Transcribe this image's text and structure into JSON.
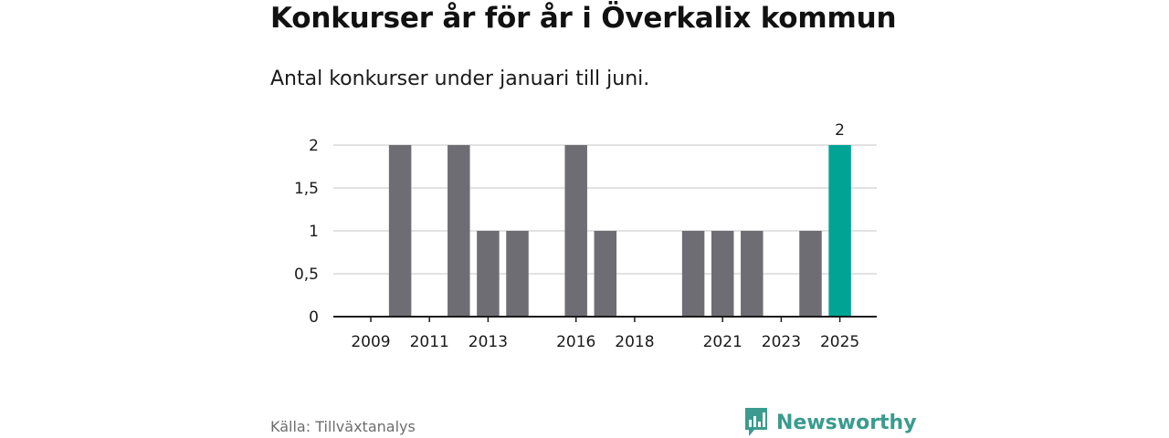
{
  "header": {
    "title": "Konkurser år för år i Överkalix kommun",
    "subtitle": "Antal konkurser under januari till juni."
  },
  "footer": {
    "source": "Källa: Tillväxtanalys",
    "brand": "Newsworthy",
    "brand_icon": "bar-chart-speech-bubble-icon"
  },
  "colors": {
    "bar": "#6e6d73",
    "highlight": "#00a394",
    "grid": "#d9d9d9",
    "axis": "#1a1a1a",
    "brand": "#3a9b8e"
  },
  "chart_data": {
    "type": "bar",
    "title": "Konkurser år för år i Överkalix kommun",
    "subtitle": "Antal konkurser under januari till juni.",
    "categories": [
      2009,
      2010,
      2011,
      2012,
      2013,
      2014,
      2015,
      2016,
      2017,
      2018,
      2019,
      2020,
      2021,
      2022,
      2023,
      2024,
      2025
    ],
    "values": [
      0,
      2,
      0,
      2,
      1,
      1,
      0,
      2,
      1,
      0,
      0,
      1,
      1,
      1,
      0,
      1,
      2
    ],
    "highlight_category": 2025,
    "data_labels": [
      {
        "category": 2025,
        "text": "2"
      }
    ],
    "x_tick_labels": [
      "2009",
      "2011",
      "2013",
      "2016",
      "2018",
      "2021",
      "2023",
      "2025"
    ],
    "y_ticks": [
      0,
      0.5,
      1,
      1.5,
      2
    ],
    "y_tick_labels": [
      "0",
      "0,5",
      "1",
      "1,5",
      "2"
    ],
    "ylim": [
      0,
      2
    ],
    "grid": true,
    "xlabel": "",
    "ylabel": ""
  }
}
